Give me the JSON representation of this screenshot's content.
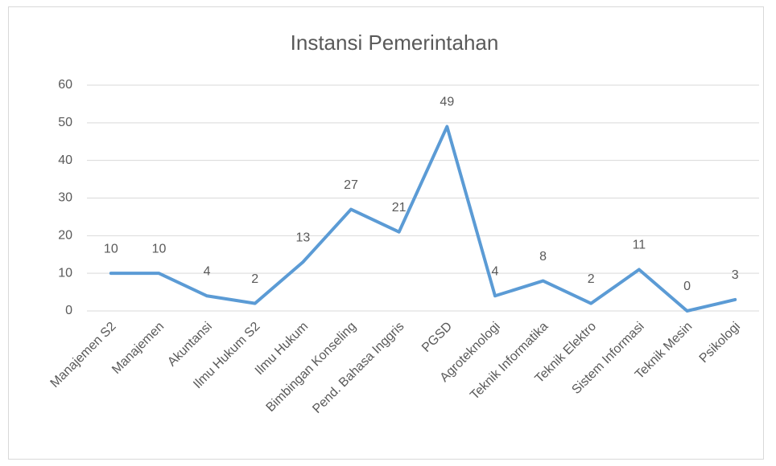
{
  "chart_data": {
    "type": "line",
    "title": "Instansi Pemerintahan",
    "categories": [
      "Manajemen S2",
      "Manajemen",
      "Akuntansi",
      "Ilmu Hukum S2",
      "Ilmu Hukum",
      "Bimbingan Konseling",
      "Pend. Bahasa Inggris",
      "PGSD",
      "Agroteknologi",
      "Teknik Informatika",
      "Teknik Elektro",
      "Sistem Informasi",
      "Teknik Mesin",
      "Psikologi"
    ],
    "values": [
      10,
      10,
      4,
      2,
      13,
      27,
      21,
      49,
      4,
      8,
      2,
      11,
      0,
      3
    ],
    "color": "#5b9bd5",
    "ylim": [
      0,
      60
    ],
    "yticks": [
      0,
      10,
      20,
      30,
      40,
      50,
      60
    ],
    "grid": true
  }
}
